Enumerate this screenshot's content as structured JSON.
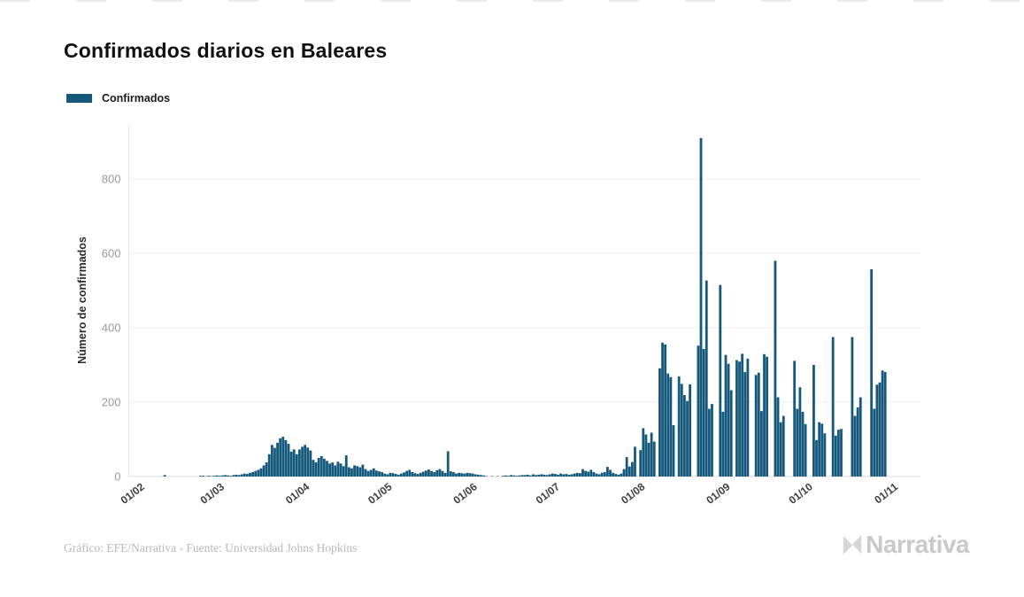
{
  "header": {
    "title": "Confirmados diarios en Baleares"
  },
  "legend": {
    "label": "Confirmados",
    "color": "#14597c"
  },
  "footer": {
    "credit": "Gráfico: EFE/Narrativa - Fuente: Universidad Johns Hopkins",
    "brand": "Narrativa",
    "brand_color": "#c9c9c9"
  },
  "chart_data": {
    "type": "bar",
    "title": "Confirmados diarios en Baleares",
    "series_name": "Confirmados",
    "xlabel": "",
    "ylabel": "Número de confirmados",
    "ylim": [
      0,
      800
    ],
    "yticks": [
      0,
      200,
      400,
      600,
      800
    ],
    "grid": true,
    "legend_position": "top-left",
    "bar_color": "#14597c",
    "x_is_daily_dates": true,
    "start_date": "01/02/2020",
    "end_date": "01/11/2020",
    "x_tick_labels": [
      "01/02",
      "01/03",
      "01/04",
      "01/05",
      "01/06",
      "01/07",
      "01/08",
      "01/09",
      "01/10",
      "01/11"
    ],
    "x_tick_indices": [
      0,
      29,
      60,
      90,
      121,
      151,
      182,
      213,
      243,
      274
    ],
    "values": [
      0,
      0,
      0,
      0,
      0,
      0,
      0,
      0,
      0,
      0,
      0,
      4,
      0,
      0,
      0,
      0,
      0,
      0,
      0,
      0,
      0,
      0,
      0,
      0,
      2,
      2,
      1,
      2,
      1,
      2,
      3,
      2,
      3,
      4,
      3,
      2,
      4,
      5,
      4,
      6,
      8,
      7,
      10,
      12,
      15,
      18,
      22,
      30,
      38,
      60,
      85,
      77,
      91,
      103,
      107,
      98,
      88,
      67,
      73,
      60,
      73,
      80,
      85,
      78,
      70,
      45,
      38,
      50,
      55,
      48,
      42,
      35,
      38,
      30,
      40,
      35,
      28,
      57,
      25,
      22,
      30,
      28,
      25,
      32,
      20,
      15,
      18,
      22,
      16,
      14,
      12,
      8,
      6,
      10,
      9,
      7,
      5,
      8,
      11,
      15,
      18,
      12,
      9,
      7,
      10,
      13,
      16,
      19,
      15,
      12,
      17,
      20,
      15,
      10,
      68,
      14,
      12,
      8,
      10,
      9,
      8,
      10,
      9,
      8,
      6,
      5,
      4,
      3,
      1,
      0,
      1,
      0,
      1,
      0,
      2,
      3,
      2,
      4,
      3,
      2,
      3,
      4,
      4,
      5,
      3,
      6,
      4,
      5,
      6,
      5,
      4,
      6,
      8,
      7,
      5,
      8,
      6,
      7,
      5,
      6,
      8,
      10,
      9,
      20,
      15,
      13,
      18,
      12,
      8,
      6,
      10,
      12,
      26,
      18,
      10,
      7,
      5,
      8,
      20,
      52,
      27,
      39,
      80,
      0,
      71,
      130,
      113,
      91,
      118,
      94,
      0,
      291,
      360,
      355,
      277,
      267,
      138,
      0,
      269,
      249,
      219,
      203,
      248,
      0,
      0,
      352,
      910,
      343,
      527,
      182,
      195,
      0,
      0,
      515,
      174,
      327,
      303,
      232,
      0,
      313,
      309,
      330,
      281,
      317,
      0,
      0,
      273,
      279,
      176,
      329,
      322,
      0,
      0,
      580,
      213,
      146,
      163,
      0,
      0,
      0,
      311,
      182,
      240,
      174,
      141,
      0,
      0,
      300,
      98,
      146,
      142,
      116,
      0,
      0,
      375,
      110,
      126,
      128,
      0,
      0,
      0,
      375,
      163,
      186,
      213,
      0,
      0,
      0,
      557,
      182,
      247,
      253,
      285,
      281
    ]
  }
}
